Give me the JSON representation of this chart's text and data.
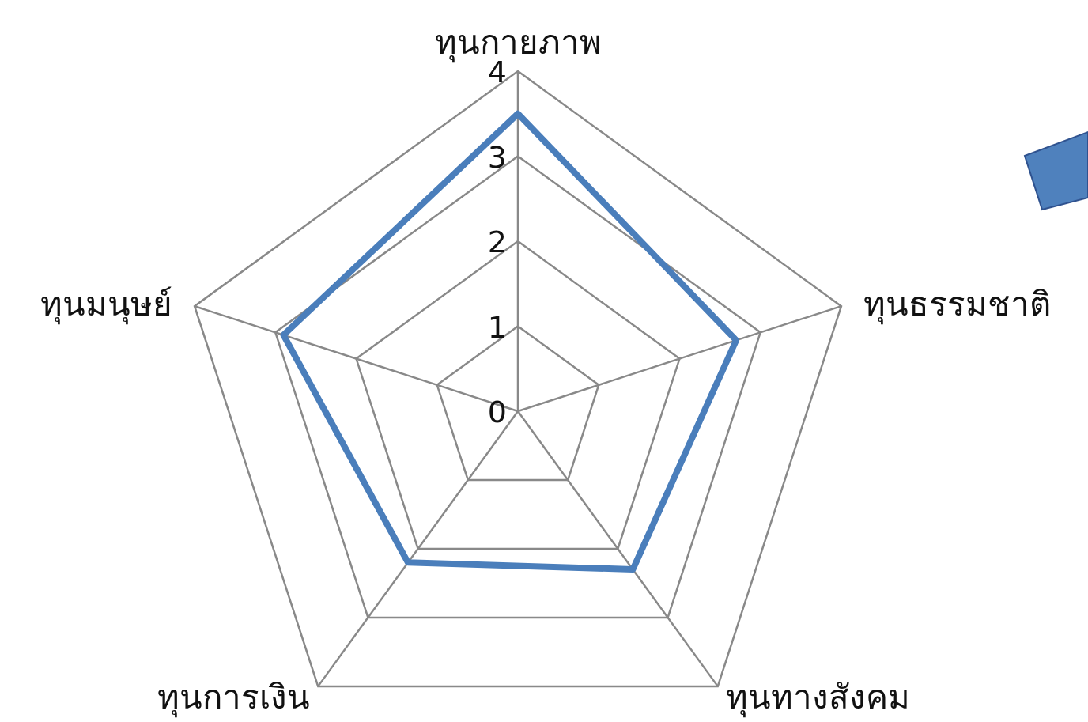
{
  "chart_data": {
    "type": "radar",
    "categories": [
      "ทุนกายภาพ",
      "ทุนธรรมชาติ",
      "ทุนทางสังคม",
      "ทุนการเงิน",
      "ทุนมนุษย์"
    ],
    "series": [
      {
        "color": "#4a7ebb",
        "values": [
          3.5,
          2.7,
          2.3,
          2.2,
          2.9
        ]
      }
    ],
    "ylim": [
      0,
      4
    ],
    "yticks": [
      0,
      1,
      2,
      3,
      4
    ],
    "grid": true,
    "marker": "none"
  }
}
